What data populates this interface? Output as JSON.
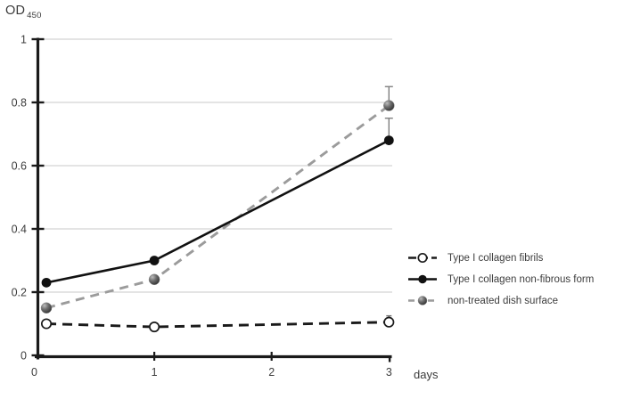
{
  "y_axis": {
    "title": "OD",
    "subscript": "450"
  },
  "x_axis": {
    "label": "days"
  },
  "colors": {
    "black_line": "#1a1a1a",
    "gray_line": "#9b9b9b",
    "gridline": "#c8c8c8",
    "error_bar": "#7f7f7f",
    "text": "#3d3d3d"
  },
  "chart_data": {
    "type": "line",
    "title": "",
    "xlabel": "days",
    "ylabel": "OD 450",
    "xlim": [
      0,
      3
    ],
    "ylim": [
      0,
      1
    ],
    "grid": "horizontal",
    "legend_position": "right-outside",
    "x_ticks": [
      {
        "value": 0,
        "label": "0"
      },
      {
        "value": 1,
        "label": "1"
      },
      {
        "value": 2,
        "label": "2"
      },
      {
        "value": 3,
        "label": "3"
      }
    ],
    "y_ticks": [
      {
        "value": 0,
        "label": "0"
      },
      {
        "value": 0.2,
        "label": "0.2"
      },
      {
        "value": 0.4,
        "label": "0.4"
      },
      {
        "value": 0.6,
        "label": "0.6"
      },
      {
        "value": 0.8,
        "label": "0.8"
      },
      {
        "value": 1,
        "label": "1"
      }
    ],
    "series": [
      {
        "name": "Type I collagen fibrils",
        "x": [
          0.08,
          1,
          3
        ],
        "values": [
          0.1,
          0.09,
          0.105
        ],
        "errors_up": [
          0,
          0,
          0.02
        ],
        "style": {
          "line": "dashed",
          "dash": "11 7",
          "color": "#1a1a1a",
          "marker": "open-circle",
          "z": 1,
          "error_color": "#6f6f6f",
          "cap": 6
        }
      },
      {
        "name": "Type I collagen non-fibrous form",
        "x": [
          0.08,
          1,
          3
        ],
        "values": [
          0.23,
          0.3,
          0.68
        ],
        "errors_up": [
          0,
          0,
          0.07
        ],
        "style": {
          "line": "solid",
          "dash": "",
          "color": "#111111",
          "marker": "filled-circle",
          "z": 3,
          "error_color": "#7f7f7f",
          "cap": 9
        }
      },
      {
        "name": "non-treated dish surface",
        "x": [
          0.08,
          1,
          3
        ],
        "values": [
          0.15,
          0.24,
          0.79
        ],
        "errors_up": [
          0,
          0,
          0.06
        ],
        "style": {
          "line": "dashed",
          "dash": "10 7",
          "color": "#9b9b9b",
          "marker": "gray-circle",
          "z": 2,
          "error_color": "#7f7f7f",
          "cap": 9
        }
      }
    ]
  }
}
